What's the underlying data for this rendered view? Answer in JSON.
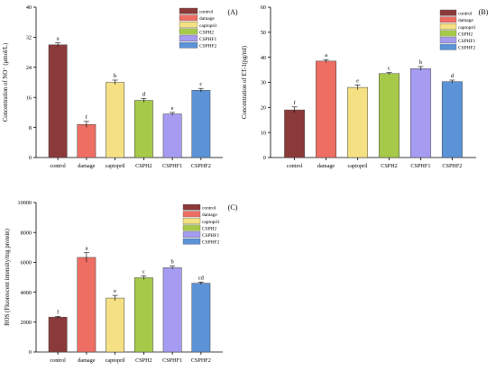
{
  "legend": {
    "labels": [
      "control",
      "damage",
      "captopril",
      "CSPH2",
      "CSPHF1",
      "CSPHF2"
    ],
    "colors": [
      "#8b3a3a",
      "#ee6e63",
      "#f5e184",
      "#a6c94a",
      "#a59cf2",
      "#5b93d6"
    ]
  },
  "chart_data": [
    {
      "type": "bar",
      "panel_label": "(A)",
      "ylabel": "Concentration of NO⁻ (μmol/L)",
      "categories": [
        "control",
        "damage",
        "captopril",
        "CSPH2",
        "CSPHF1",
        "CSPHF2"
      ],
      "values": [
        30.0,
        8.8,
        20.0,
        15.2,
        11.6,
        17.9
      ],
      "errors": [
        0.5,
        0.8,
        0.6,
        0.5,
        0.4,
        0.5
      ],
      "sig_letters": [
        "a",
        "f",
        "b",
        "d",
        "e",
        "c"
      ],
      "ylim": [
        0,
        40
      ],
      "yticks": [
        0,
        8,
        16,
        24,
        32,
        40
      ],
      "legend_position": "top-right"
    },
    {
      "type": "bar",
      "panel_label": "(B)",
      "ylabel": "Concentration of ET-1(pg/ml)",
      "categories": [
        "control",
        "damage",
        "captopril",
        "CSPH2",
        "CSPHF1",
        "CSPHF2"
      ],
      "values": [
        19.0,
        38.5,
        28.0,
        33.5,
        35.5,
        30.3
      ],
      "errors": [
        1.2,
        0.6,
        1.0,
        0.4,
        0.8,
        0.6
      ],
      "sig_letters": [
        "f",
        "a",
        "e",
        "c",
        "b",
        "d"
      ],
      "ylim": [
        0,
        60
      ],
      "yticks": [
        0,
        10,
        20,
        30,
        40,
        50,
        60
      ],
      "legend_position": "top-right"
    },
    {
      "type": "bar",
      "panel_label": "(C)",
      "ylabel": "ROS (Fluorescent intensity/mg protein)",
      "categories": [
        "control",
        "damage",
        "captopril",
        "CSPH2",
        "CSPHF1",
        "CSPHF2"
      ],
      "values": [
        2330,
        6330,
        3610,
        4970,
        5640,
        4600
      ],
      "errors": [
        60,
        320,
        180,
        120,
        100,
        80
      ],
      "sig_letters": [
        "f",
        "a",
        "e",
        "c",
        "b",
        "cd"
      ],
      "ylim": [
        0,
        10000
      ],
      "yticks": [
        0,
        2000,
        4000,
        6000,
        8000,
        10000
      ],
      "legend_position": "top-right"
    }
  ]
}
